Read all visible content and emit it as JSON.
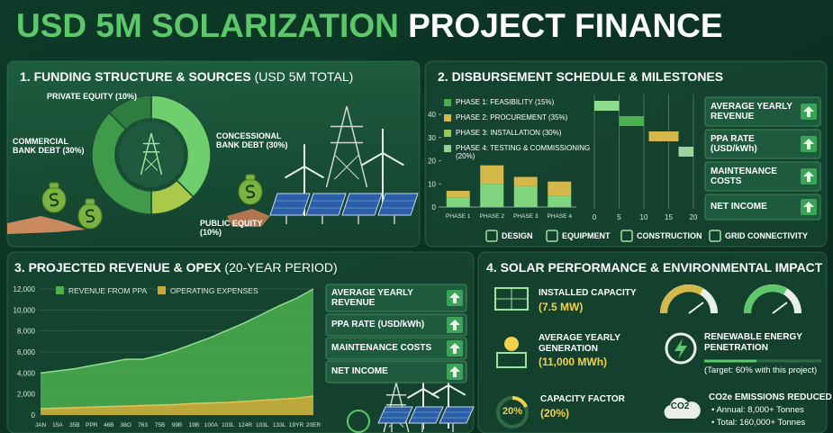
{
  "title": {
    "accent": "USD 5M SOLARIZATION",
    "main": "PROJECT FINANCE"
  },
  "funding": {
    "heading": "1. FUNDING STRUCTURE & SOURCES",
    "note": "(USD 5M TOTAL)"
  },
  "disbursement": {
    "heading": "2. DISBURSEMENT SCHEDULE & MILESTONES",
    "milestones": [
      "DESIGN",
      "EQUIPMENT",
      "CONSTRUCTION",
      "GRID CONNECTIVITY"
    ],
    "cards": [
      "AVERAGE YEARLY REVENUE",
      "PPA RATE (USD/kWh)",
      "MAINTENANCE COSTS",
      "NET INCOME"
    ]
  },
  "revenue": {
    "heading": "3. PROJECTED REVENUE & OPEX",
    "note": "(20-YEAR PERIOD)",
    "cards": [
      "AVERAGE YEARLY REVENUE",
      "PPA RATE (USD/kWh)",
      "MAINTENANCE COSTS",
      "NET INCOME"
    ]
  },
  "performance": {
    "heading": "4. SOLAR PERFORMANCE & ENVIRONMENTAL IMPACT",
    "installed": {
      "label": "INSTALLED CAPACITY",
      "value": "(7.5 MW)"
    },
    "generation": {
      "label": "AVERAGE YEARLY GENERATION",
      "value": "(11,000 MWh)"
    },
    "capacity_factor": {
      "label": "CAPACITY FACTOR",
      "value": "(20%)",
      "ring": "20%"
    },
    "penetration": {
      "label": "RENEWABLE ENERGY PENETRATION",
      "note": "(Target: 60% with this project)"
    },
    "emissions": {
      "label": "CO2e EMISSIONS REDUCED",
      "icon": "CO2",
      "lines": [
        "• Annual: 8,000+ Tonnes",
        "• Total: 160,000+ Tonnes"
      ]
    }
  },
  "chart_data": [
    {
      "type": "pie",
      "categories": [
        "CONCESSIONAL BANK DEBT (30%)",
        "PUBLIC EQUITY (10%)",
        "COMMERCIAL BANK DEBT (30%)",
        "PRIVATE EQUITY (10%)"
      ],
      "values": [
        30,
        10,
        30,
        10
      ],
      "colors": [
        "#6fcf6f",
        "#a8c94a",
        "#3f9a4a",
        "#2e7d3e"
      ]
    },
    {
      "type": "bar",
      "stacked": true,
      "categories": [
        "PHASE 1",
        "PHASE 2",
        "PHASE 3",
        "PHASE 4"
      ],
      "series": [
        {
          "color": "#7fd67f",
          "values": [
            4,
            10,
            9,
            5
          ]
        },
        {
          "color": "#d4b84a",
          "values": [
            3,
            8,
            4,
            6
          ]
        }
      ],
      "legend": [
        {
          "label": "PHASE 1: FEASIBILITY (15%)",
          "color": "#4caf50"
        },
        {
          "label": "PHASE 2: PROCUREMENT (35%)",
          "color": "#d4b84a"
        },
        {
          "label": "PHASE 3: INSTALLATION (30%)",
          "color": "#9cc55a"
        },
        {
          "label": "PHASE 4: TESTING & COMMISSIONING (20%)",
          "color": "#8fd18f"
        }
      ],
      "ylim": [
        0,
        40
      ],
      "yticks": [
        0,
        10,
        20,
        30,
        40
      ]
    },
    {
      "type": "gantt",
      "starts": [
        0,
        5,
        11,
        17
      ],
      "ends": [
        5,
        10,
        17,
        20
      ],
      "colors": [
        "#8fdc8f",
        "#4caf50",
        "#d4b84a",
        "#9fd39f"
      ],
      "xlim": [
        0,
        20
      ],
      "xticks": [
        0,
        5,
        10,
        15,
        20
      ],
      "grid": true
    },
    {
      "type": "area",
      "categories": [
        "JAN",
        "15A",
        "35B",
        "PPR",
        "46B",
        "38O",
        "763",
        "75B",
        "99B",
        "19B",
        "100A",
        "103L",
        "124R",
        "103L",
        "133L",
        "19YR",
        "20ER"
      ],
      "series": [
        {
          "name": "REVENUE FROM PPA",
          "color": "#4caf50",
          "values": [
            4000,
            4200,
            4400,
            4700,
            5000,
            5300,
            5300,
            5700,
            6200,
            6800,
            7400,
            8100,
            8800,
            9600,
            10400,
            11100,
            12000
          ]
        },
        {
          "name": "OPERATING EXPENSES",
          "color": "#c9a83a",
          "values": [
            600,
            650,
            700,
            750,
            800,
            850,
            900,
            950,
            1000,
            1100,
            1150,
            1200,
            1300,
            1400,
            1500,
            1600,
            1800
          ]
        }
      ],
      "ylim": [
        0,
        12000
      ],
      "yticks": [
        0,
        {
          "value": 2000,
          "label": "2,000"
        },
        {
          "value": 4000,
          "label": "4,000"
        },
        {
          "value": 6000,
          "label": "6,000"
        },
        {
          "value": 8000,
          "label": "8,000"
        },
        {
          "value": 10000,
          "label": "10,000"
        },
        {
          "value": 12000,
          "label": "12,000"
        }
      ],
      "grid": true
    }
  ]
}
